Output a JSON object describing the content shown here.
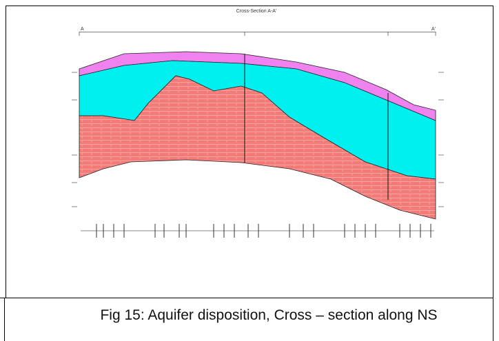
{
  "figure": {
    "title": "Cross-Section A-A'",
    "left_label": "A",
    "right_label": "A'"
  },
  "caption": "Fig 15: Aquifer disposition, Cross – section along NS"
}
